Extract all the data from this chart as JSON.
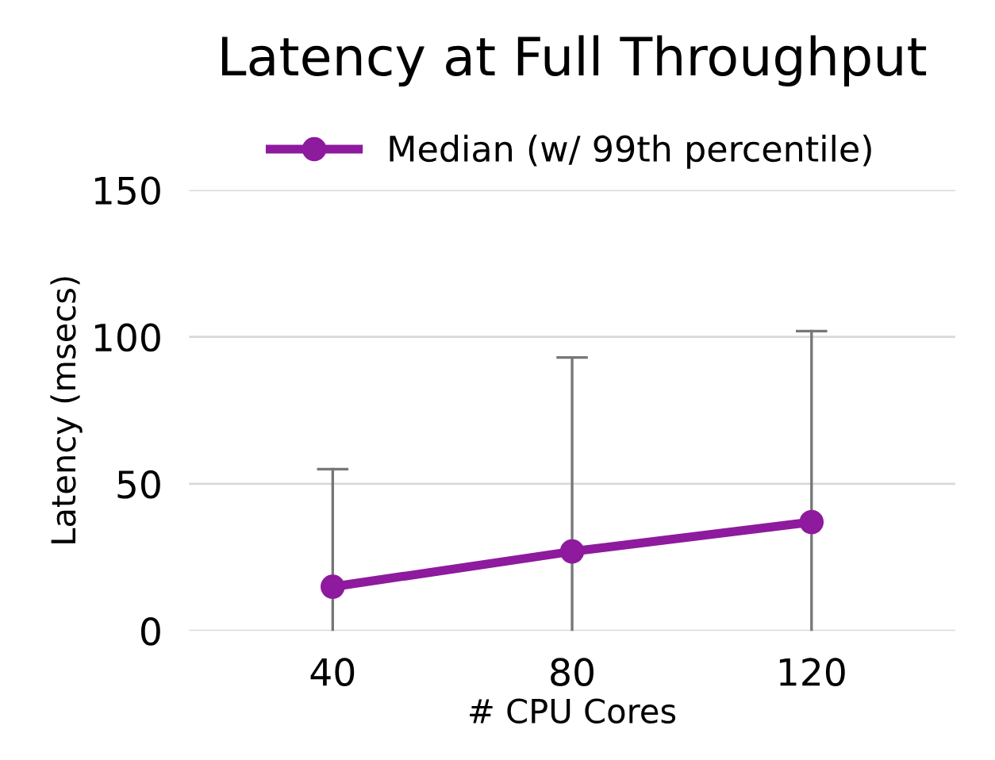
{
  "chart_data": {
    "type": "line",
    "title": "Latency at Full Throughput",
    "xlabel": "# CPU Cores",
    "ylabel": "Latency (msecs)",
    "categories": [
      "40",
      "80",
      "120"
    ],
    "series": [
      {
        "name": "Median (w/ 99th percentile)",
        "color": "#8e1a9e",
        "values": [
          15,
          27,
          37
        ],
        "errors": [
          [
            0,
            55
          ],
          [
            0,
            93
          ],
          [
            0,
            102
          ]
        ]
      }
    ],
    "ylim": [
      0,
      150
    ],
    "yticks": [
      0,
      50,
      100,
      150
    ],
    "grid": "y",
    "legend": "top",
    "marker": "circle",
    "line_style": "solid"
  }
}
